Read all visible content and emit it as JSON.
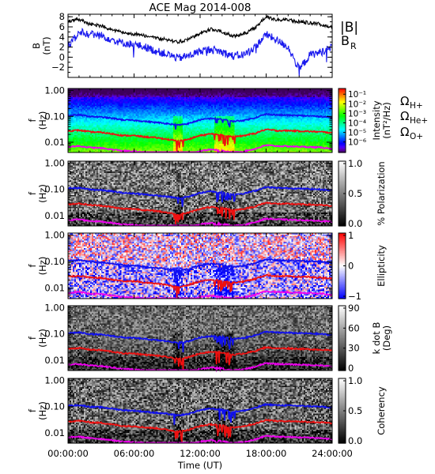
{
  "title": "ACE Mag 2014-008",
  "colors": {
    "background": "#ffffff",
    "total_b": "#000000",
    "b_r": "#1a1aee",
    "h_plus": "#1010ee",
    "he_plus": "#ee1010",
    "o_plus": "#ee00ee"
  },
  "x_axis": {
    "label": "Time (UT)",
    "ticks": [
      "00:00:00",
      "06:00:00",
      "12:00:00",
      "18:00:00",
      "24:00:00"
    ],
    "tick_hours": [
      0,
      6,
      12,
      18,
      24
    ],
    "range_hours": [
      0,
      24
    ]
  },
  "freq_axis": {
    "label_line1": "f",
    "label_line2": "(Hz)",
    "ticks": [
      "1.00",
      "0.10",
      "0.01"
    ],
    "tick_values": [
      1.0,
      0.1,
      0.01
    ],
    "range": [
      0.004,
      1.2
    ],
    "log": true
  },
  "legend": {
    "total_b": "|B|",
    "b_r_main": "B",
    "b_r_sub": "R",
    "omega": "Ω",
    "h_plus_sub": "H+",
    "he_plus_sub": "He+",
    "o_plus_sub": "O+"
  },
  "chart_data": [
    {
      "type": "line",
      "name": "magnetic-field",
      "ylabel_line1": "B",
      "ylabel_line2": "(nT)",
      "ylim": [
        -4,
        8.5
      ],
      "y_ticks": [
        8,
        6,
        4,
        2,
        0,
        -2
      ],
      "y_tick_labels": [
        "8",
        "6",
        "4",
        "2",
        "0",
        "−2"
      ],
      "x_hours": [
        0,
        1,
        2,
        3,
        4,
        5,
        6,
        7,
        8,
        9,
        10,
        11,
        12,
        13,
        14,
        15,
        16,
        17,
        18,
        19,
        20,
        21,
        22,
        23,
        24
      ],
      "series": [
        {
          "name": "|B|",
          "values": [
            7.0,
            7.5,
            6.5,
            6.2,
            5.5,
            4.8,
            4.6,
            4.2,
            3.8,
            3.5,
            3.0,
            3.5,
            4.8,
            5.5,
            5.0,
            4.2,
            4.6,
            5.8,
            8.0,
            7.4,
            7.3,
            7.0,
            6.8,
            6.5,
            6.0
          ]
        },
        {
          "name": "B_R",
          "values": [
            2.0,
            5.0,
            4.5,
            4.3,
            3.5,
            2.8,
            2.5,
            2.0,
            1.2,
            0.6,
            -0.2,
            0.3,
            1.2,
            1.6,
            1.0,
            0.2,
            0.5,
            2.0,
            4.5,
            3.3,
            2.0,
            -2.5,
            0.5,
            1.0,
            2.0
          ]
        }
      ]
    },
    {
      "type": "heatmap",
      "name": "intensity",
      "colorbar_label_line1": "Intensity",
      "colorbar_label_line2": "(nT²/Hz)",
      "colorbar_ticks": [
        "10⁻¹",
        "10⁻²",
        "10⁻³",
        "10⁻⁴",
        "10⁻⁵",
        "10⁻⁶"
      ],
      "colorscale": "rainbow",
      "zlim": [
        1e-06,
        0.1
      ],
      "log_z": true
    },
    {
      "type": "heatmap",
      "name": "polarization",
      "colorbar_label_line1": "% Polarization",
      "colorbar_ticks": [
        "1.0",
        "0.5",
        "0.0"
      ],
      "colorscale": "gray",
      "zlim": [
        0,
        1
      ]
    },
    {
      "type": "heatmap",
      "name": "ellipticity",
      "colorbar_label_line1": "Ellipticity",
      "colorbar_ticks": [
        "1",
        "0",
        "−1"
      ],
      "colorscale": "blue-white-red",
      "zlim": [
        -1,
        1
      ]
    },
    {
      "type": "heatmap",
      "name": "k-dot-b",
      "colorbar_label_line1": "k dot B",
      "colorbar_label_line2": "(Deg)",
      "colorbar_ticks": [
        "90",
        "60",
        "30",
        "0"
      ],
      "colorscale": "gray",
      "zlim": [
        0,
        90
      ]
    },
    {
      "type": "heatmap",
      "name": "coherency",
      "colorbar_label_line1": "Coherency",
      "colorbar_ticks": [
        "1.0",
        "0.5",
        "0.0"
      ],
      "colorscale": "gray",
      "zlim": [
        0,
        1
      ]
    }
  ],
  "gyrofrequency_lines": {
    "x_hours": [
      0,
      1,
      2,
      3,
      4,
      5,
      6,
      7,
      8,
      9,
      10,
      11,
      12,
      13,
      14,
      15,
      16,
      17,
      18,
      19,
      20,
      21,
      22,
      23,
      24
    ],
    "h_plus_hz": [
      0.107,
      0.114,
      0.099,
      0.094,
      0.084,
      0.073,
      0.07,
      0.064,
      0.058,
      0.053,
      0.046,
      0.053,
      0.073,
      0.084,
      0.076,
      0.064,
      0.07,
      0.088,
      0.122,
      0.113,
      0.111,
      0.107,
      0.104,
      0.099,
      0.091
    ],
    "he_plus_hz": [
      0.027,
      0.029,
      0.025,
      0.024,
      0.021,
      0.018,
      0.018,
      0.016,
      0.015,
      0.013,
      0.011,
      0.013,
      0.018,
      0.021,
      0.019,
      0.016,
      0.018,
      0.022,
      0.031,
      0.028,
      0.028,
      0.027,
      0.026,
      0.025,
      0.023
    ],
    "o_plus_hz": [
      0.0067,
      0.0071,
      0.0062,
      0.0059,
      0.0052,
      0.0046,
      0.0044,
      0.004,
      0.0036,
      0.0033,
      0.0029,
      0.0033,
      0.0046,
      0.0052,
      0.0048,
      0.004,
      0.0044,
      0.0055,
      0.0076,
      0.0071,
      0.0069,
      0.0067,
      0.0065,
      0.0062,
      0.0057
    ]
  }
}
